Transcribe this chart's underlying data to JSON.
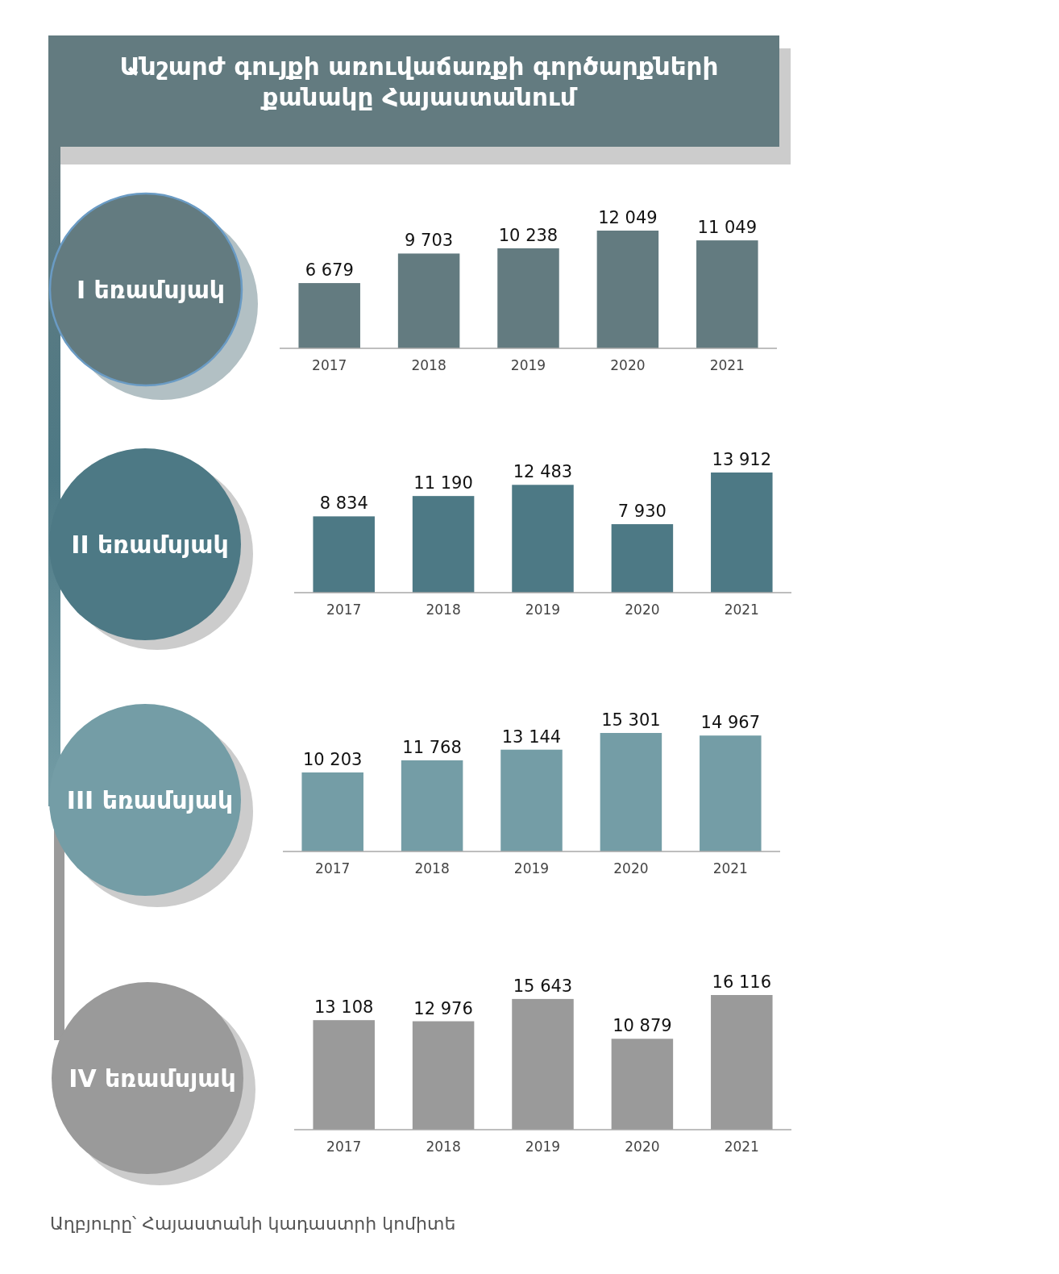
{
  "chart_data": [
    {
      "type": "other",
      "title": "Անշարժ գույքի առուվաճառքի գործարքների քանակը Հայաստանում"
    },
    {
      "type": "bar",
      "title": "I եռամսյակ",
      "categories": [
        "2017",
        "2018",
        "2019",
        "2020",
        "2021"
      ],
      "values": [
        6679,
        9703,
        10238,
        12049,
        11049
      ],
      "color": "#637b80",
      "data_labels": true
    },
    {
      "type": "bar",
      "title": "II եռամսյակ",
      "categories": [
        "2017",
        "2018",
        "2019",
        "2020",
        "2021"
      ],
      "values": [
        8834,
        11190,
        12483,
        7930,
        13912
      ],
      "color": "#4d7985",
      "data_labels": true
    },
    {
      "type": "bar",
      "title": "III եռամսյակ",
      "categories": [
        "2017",
        "2018",
        "2019",
        "2020",
        "2021"
      ],
      "values": [
        10203,
        11768,
        13144,
        15301,
        14967
      ],
      "color": "#749da6",
      "data_labels": true
    },
    {
      "type": "bar",
      "title": "IV եռամսյակ",
      "categories": [
        "2017",
        "2018",
        "2019",
        "2020",
        "2021"
      ],
      "values": [
        13108,
        12976,
        15643,
        10879,
        16116
      ],
      "color": "#9a9a9a",
      "data_labels": true,
      "annotations": [
        "Աղբյուրը՝ Հայաստանի կադաստրի կոմիտե"
      ]
    }
  ]
}
